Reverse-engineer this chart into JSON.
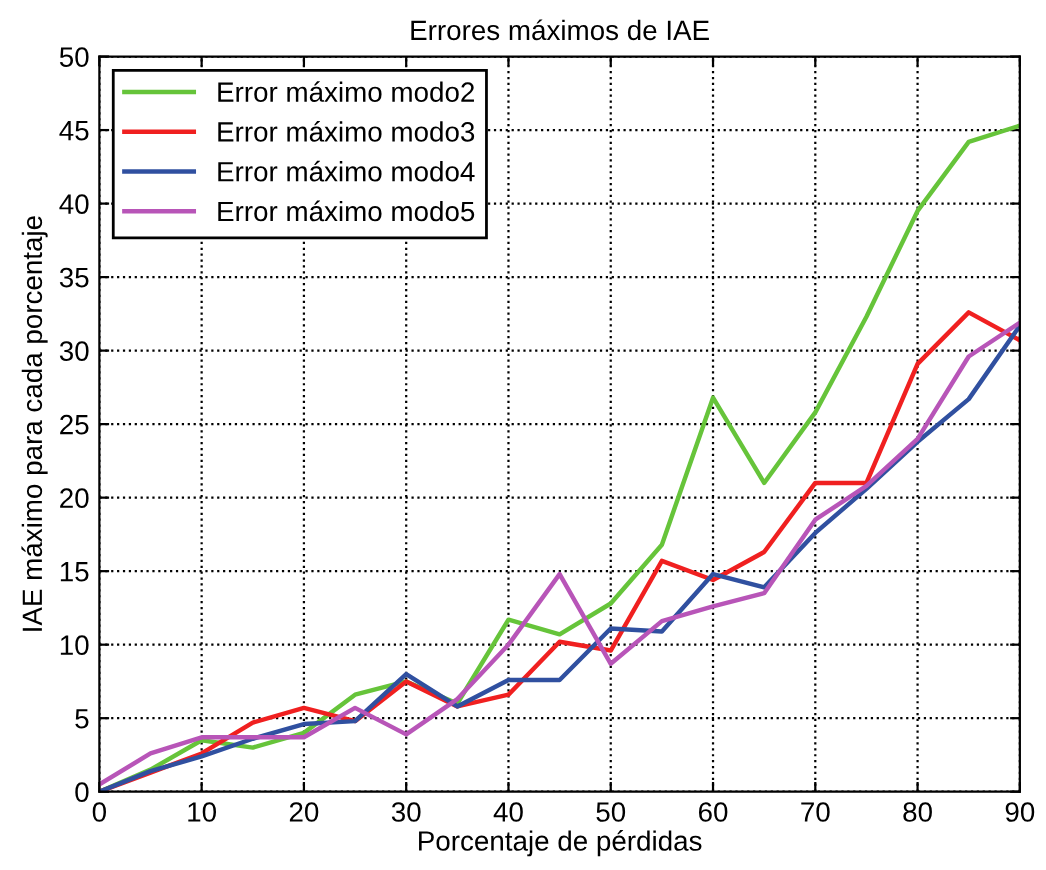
{
  "chart_data": {
    "type": "line",
    "title": "Errores máximos de IAE",
    "xlabel": "Porcentaje de pérdidas",
    "ylabel": "IAE máximo para cada porcentaje",
    "x": [
      0,
      5,
      10,
      15,
      20,
      25,
      30,
      35,
      40,
      45,
      50,
      55,
      60,
      65,
      70,
      75,
      80,
      85,
      90
    ],
    "series": [
      {
        "name": "Error máximo modo2",
        "color": "#66c43a",
        "values": [
          0,
          1.5,
          3.5,
          3,
          4,
          6.6,
          7.5,
          6,
          11.7,
          10.7,
          12.8,
          16.8,
          26.8,
          21,
          25.8,
          32.3,
          39.5,
          44.2,
          45.3
        ]
      },
      {
        "name": "Error máximo modo3",
        "color": "#f02020",
        "values": [
          0,
          1.3,
          2.6,
          4.7,
          5.7,
          4.8,
          7.5,
          5.8,
          6.6,
          10.2,
          9.6,
          15.7,
          14.4,
          16.3,
          21,
          21,
          29.1,
          32.6,
          30.7
        ]
      },
      {
        "name": "Error máximo modo4",
        "color": "#3050a0",
        "values": [
          0,
          1.4,
          2.4,
          3.6,
          4.6,
          4.8,
          8,
          5.8,
          7.6,
          7.6,
          11.1,
          10.9,
          14.8,
          13.9,
          17.6,
          20.6,
          23.8,
          26.7,
          31.7
        ]
      },
      {
        "name": "Error máximo modo5",
        "color": "#b855b8",
        "values": [
          0.5,
          2.6,
          3.7,
          3.7,
          3.7,
          5.7,
          3.9,
          6.3,
          10,
          14.8,
          8.7,
          11.6,
          12.6,
          13.5,
          18.5,
          20.8,
          24,
          29.6,
          31.9
        ]
      }
    ],
    "xlim": [
      0,
      90
    ],
    "xticks": [
      0,
      10,
      20,
      30,
      40,
      50,
      60,
      70,
      80,
      90
    ],
    "ylim": [
      0,
      50
    ],
    "yticks": [
      0,
      5,
      10,
      15,
      20,
      25,
      30,
      35,
      40,
      45,
      50
    ],
    "grid": true,
    "legend": "top left",
    "line_style": "solid",
    "marker": "none"
  }
}
